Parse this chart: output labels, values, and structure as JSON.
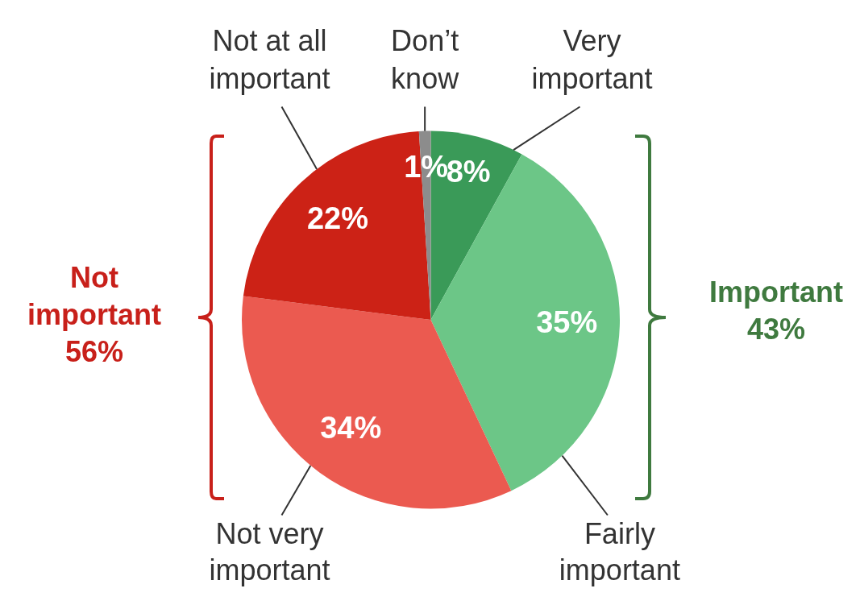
{
  "chart_data": {
    "type": "pie",
    "categories": [
      "Very important",
      "Fairly important",
      "Not very important",
      "Not at all important",
      "Don’t know"
    ],
    "values": [
      8,
      35,
      34,
      22,
      1
    ],
    "colors": [
      "#3a9a58",
      "#6cc687",
      "#eb5a50",
      "#cc2216",
      "#8c8c8c"
    ],
    "value_labels": [
      "8%",
      "35%",
      "34%",
      "22%",
      "1%"
    ],
    "legend": false,
    "annotations": [
      "Not important 56%",
      "Important 43%"
    ]
  }
}
